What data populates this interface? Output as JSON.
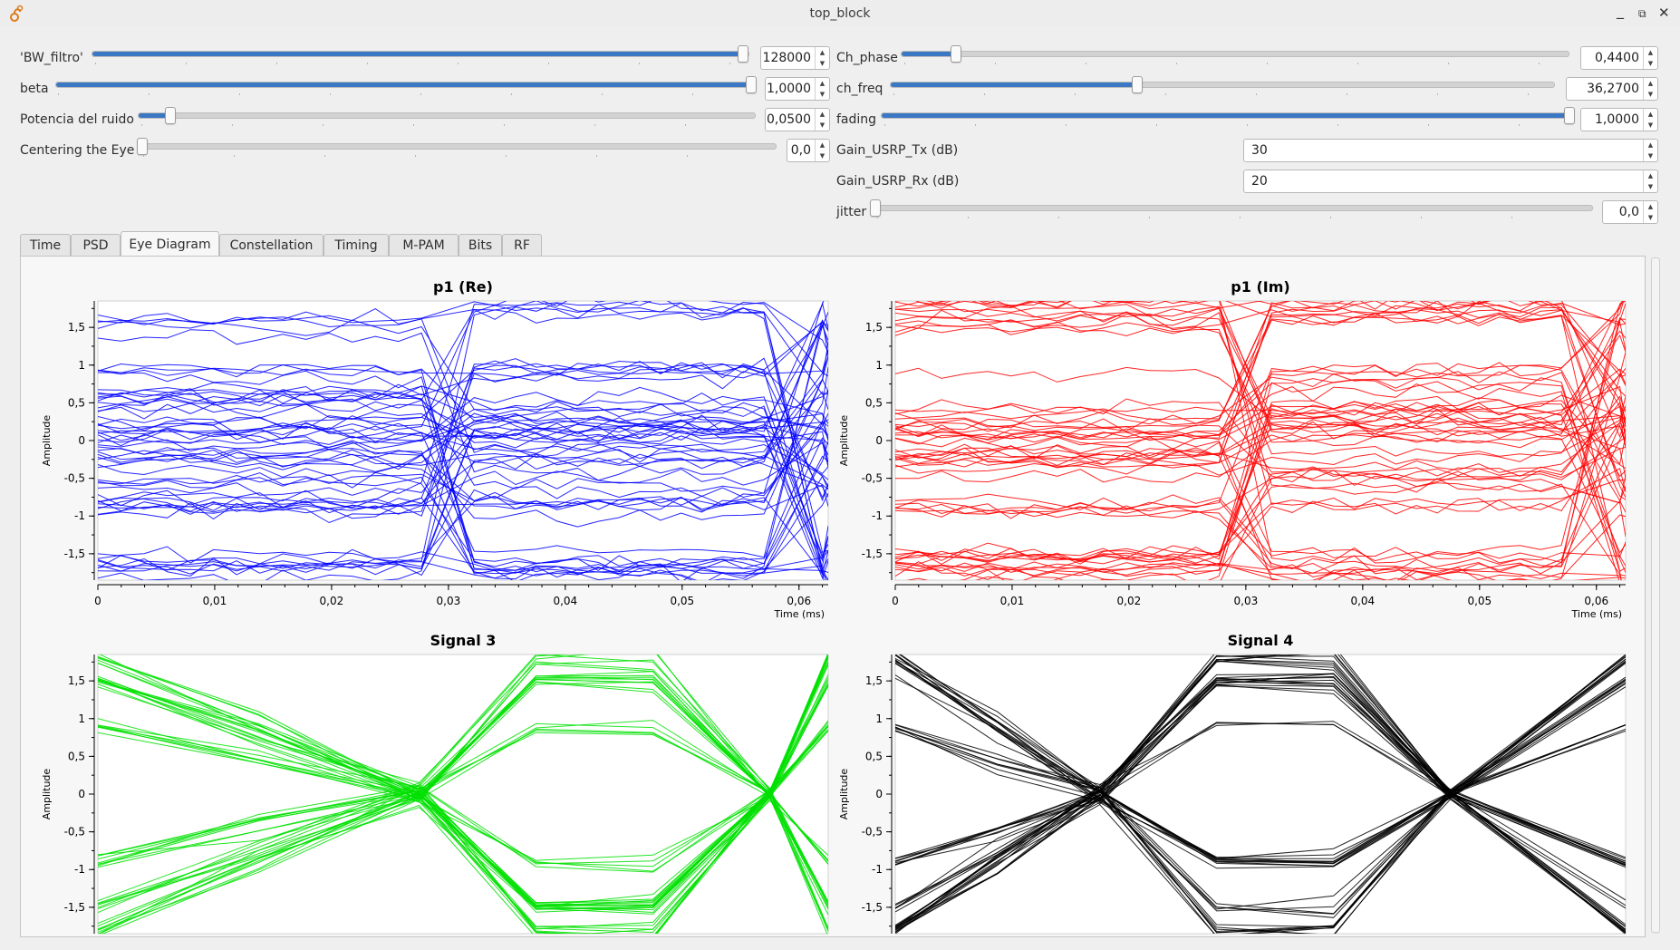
{
  "window": {
    "title": "top_block",
    "minimize": "_",
    "maximize": "⧉",
    "close": "✕"
  },
  "controls": {
    "left": [
      {
        "label": "'BW_filtro'",
        "value": "128000",
        "fraction": 0.99
      },
      {
        "label": "beta",
        "value": "1,0000",
        "fraction": 1.0
      },
      {
        "label": "Potencia del ruido",
        "value": "0,0500",
        "fraction": 0.05
      },
      {
        "label": "Centering the Eye",
        "value": "0,0",
        "fraction": 0.0
      }
    ],
    "right_sliders": [
      {
        "label": "Ch_phase",
        "value": "0,4400",
        "fraction": 0.08
      },
      {
        "label": "ch_freq",
        "value": "36,2700",
        "fraction": 0.37
      },
      {
        "label": "fading",
        "value": "1,0000",
        "fraction": 1.0
      }
    ],
    "gain_fields": [
      {
        "label": "Gain_USRP_Tx (dB)",
        "value": "30"
      },
      {
        "label": "Gain_USRP_Rx (dB)",
        "value": "20"
      }
    ],
    "jitter": {
      "label": "jitter",
      "value": "0,0",
      "fraction": 0.0
    }
  },
  "tabs": [
    {
      "label": "Time",
      "active": false
    },
    {
      "label": "PSD",
      "active": false
    },
    {
      "label": "Eye Diagram",
      "active": true
    },
    {
      "label": "Constellation",
      "active": false
    },
    {
      "label": "Timing",
      "active": false
    },
    {
      "label": "M-PAM",
      "active": false
    },
    {
      "label": "Bits",
      "active": false
    },
    {
      "label": "RF",
      "active": false
    }
  ],
  "chart_data": [
    {
      "type": "line",
      "title": "p1 (Re)",
      "ylabel": "Amplitude",
      "xlabel": "Time (ms)",
      "color": "#0000ff",
      "ylim": [
        -1.85,
        1.85
      ],
      "xlim": [
        0,
        0.0625
      ],
      "xticks": [
        0,
        0.01,
        0.02,
        0.03,
        0.04,
        0.05,
        0.06
      ],
      "xtick_labels": [
        "0",
        "0,01",
        "0,02",
        "0,03",
        "0,04",
        "0,05",
        "0,06"
      ],
      "yticks": [
        1.5,
        1,
        0.5,
        0,
        -0.5,
        -1,
        -1.5
      ],
      "ytick_labels": [
        "1,5",
        "1",
        "0,5",
        "0",
        "-0,5",
        "-1",
        "-1,5"
      ],
      "traces": 60,
      "crossings": [
        0.0297,
        0.0595
      ],
      "spread": 1.0,
      "noise": 0.12
    },
    {
      "type": "line",
      "title": "p1 (Im)",
      "ylabel": "Amplitude",
      "xlabel": "Time (ms)",
      "color": "#ff0000",
      "ylim": [
        -1.85,
        1.85
      ],
      "xlim": [
        0,
        0.0625
      ],
      "xticks": [
        0,
        0.01,
        0.02,
        0.03,
        0.04,
        0.05,
        0.06
      ],
      "xtick_labels": [
        "0",
        "0,01",
        "0,02",
        "0,03",
        "0,04",
        "0,05",
        "0,06"
      ],
      "yticks": [
        1.5,
        1,
        0.5,
        0,
        -0.5,
        -1,
        -1.5
      ],
      "ytick_labels": [
        "1,5",
        "1",
        "0,5",
        "0",
        "-0,5",
        "-1",
        "-1,5"
      ],
      "traces": 60,
      "crossings": [
        0.0297,
        0.0595
      ],
      "spread": 1.0,
      "noise": 0.12
    },
    {
      "type": "line",
      "title": "Signal 3",
      "ylabel": "Amplitude",
      "xlabel": "",
      "color": "#00e000",
      "ylim": [
        -1.85,
        1.85
      ],
      "xlim": [
        0,
        0.0625
      ],
      "yticks": [
        1.5,
        1,
        0.5,
        0,
        -0.5,
        -1,
        -1.5
      ],
      "ytick_labels": [
        "1,5",
        "1",
        "0,5",
        "0",
        "-0,5",
        "-1",
        "-1,5"
      ],
      "traces": 50,
      "crossings": [
        0.0275,
        0.0575
      ],
      "spread": 1.8,
      "noise": 0.05
    },
    {
      "type": "line",
      "title": "Signal 4",
      "ylabel": "Amplitude",
      "xlabel": "",
      "color": "#000000",
      "ylim": [
        -1.85,
        1.85
      ],
      "xlim": [
        0,
        0.0625
      ],
      "yticks": [
        1.5,
        1,
        0.5,
        0,
        -0.5,
        -1,
        -1.5
      ],
      "ytick_labels": [
        "1,5",
        "1",
        "0,5",
        "0",
        "-0,5",
        "-1",
        "-1,5"
      ],
      "traces": 50,
      "crossings": [
        0.0175,
        0.0475
      ],
      "spread": 1.8,
      "noise": 0.05
    }
  ]
}
